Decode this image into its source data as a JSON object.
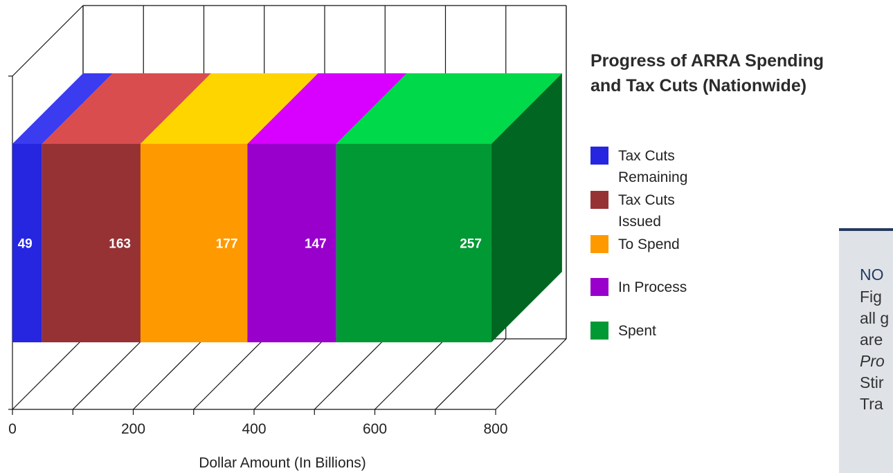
{
  "chart_data": {
    "type": "bar",
    "orientation": "horizontal",
    "stacked": true,
    "style": "3d",
    "title": "Progress of ARRA Spending and Tax Cuts (Nationwide)",
    "title_lines": [
      "Progress of ARRA Spending",
      "and Tax Cuts (Nationwide)"
    ],
    "xlabel": "Dollar Amount (In Billions)",
    "ylabel": "",
    "xlim": [
      0,
      800
    ],
    "x_ticks": [
      "0",
      "200",
      "400",
      "600",
      "800"
    ],
    "x_tick_values": [
      0,
      200,
      400,
      600,
      800
    ],
    "grid": true,
    "legend_position": "right",
    "series": [
      {
        "name": "Tax Cuts Remaining",
        "label_lines": [
          "Tax Cuts",
          "Remaining"
        ],
        "value": 49,
        "data_label": "49",
        "color": "#2626e0",
        "top_color": "#3b3bf0",
        "side_color": "#1b1ba8"
      },
      {
        "name": "Tax Cuts Issued",
        "label_lines": [
          "Tax Cuts",
          "Issued"
        ],
        "value": 163,
        "data_label": "163",
        "color": "#963234",
        "top_color": "#d94d4f",
        "side_color": "#6e2224"
      },
      {
        "name": "To Spend",
        "label_lines": [
          "To Spend"
        ],
        "value": 177,
        "data_label": "177",
        "color": "#ff9900",
        "top_color": "#ffd500",
        "side_color": "#c27400"
      },
      {
        "name": "In Process",
        "label_lines": [
          "In Process"
        ],
        "value": 147,
        "data_label": "147",
        "color": "#9900cc",
        "top_color": "#d800ff",
        "side_color": "#6f0099"
      },
      {
        "name": "Spent",
        "label_lines": [
          "Spent"
        ],
        "value": 257,
        "data_label": "257",
        "color": "#009933",
        "top_color": "#00d94a",
        "side_color": "#006622"
      }
    ]
  },
  "note": {
    "heading": "NO",
    "lines": [
      "Fig",
      "all g",
      "are",
      "Pro",
      "Stir",
      "Tra"
    ]
  }
}
